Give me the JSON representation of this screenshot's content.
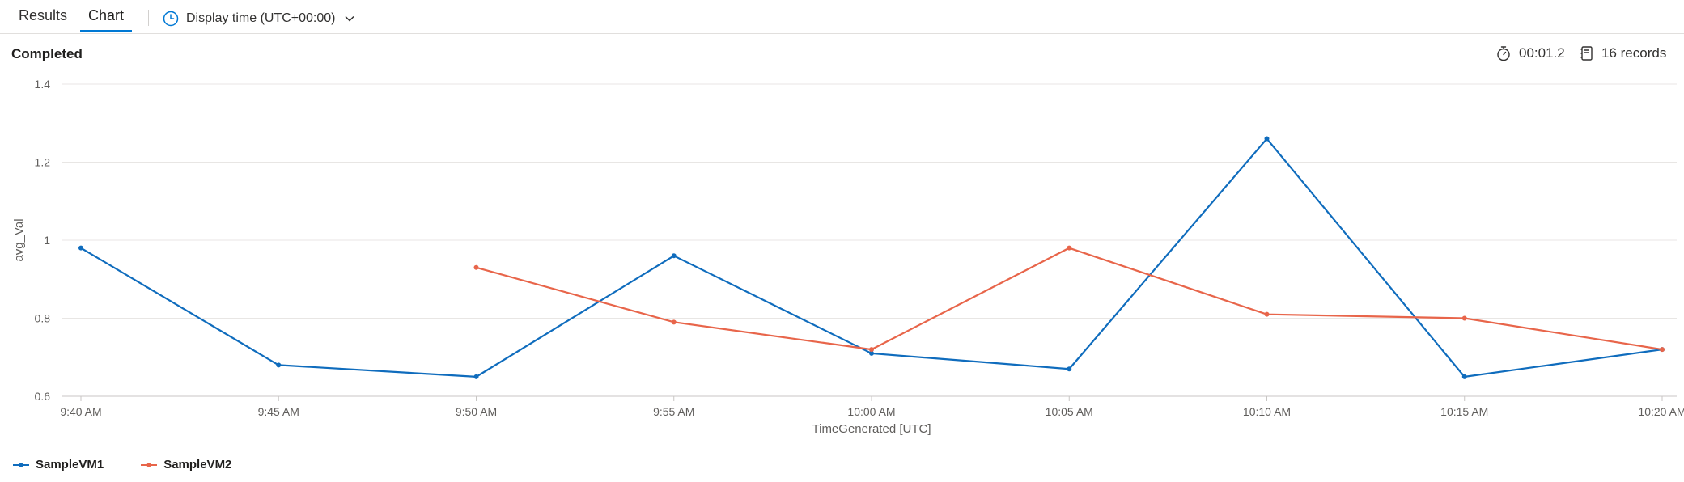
{
  "tabs": [
    {
      "label": "Results",
      "active": false
    },
    {
      "label": "Chart",
      "active": true
    }
  ],
  "display_time": {
    "label": "Display time (UTC+00:00)",
    "icon": "clock-icon"
  },
  "status": {
    "text": "Completed",
    "duration": "00:01.2",
    "records": "16 records"
  },
  "colors": {
    "accent": "#0078d4",
    "series1": "#0f6cbd",
    "series2": "#e8654a"
  },
  "chart_data": {
    "type": "line",
    "xlabel": "TimeGenerated [UTC]",
    "ylabel": "avg_Val",
    "ylim": [
      0.6,
      1.4
    ],
    "yticks": [
      0.6,
      0.8,
      1,
      1.2,
      1.4
    ],
    "ytick_labels": [
      "0.6",
      "0.8",
      "1",
      "1.2",
      "1.4"
    ],
    "x_ticks": [
      "9:40 AM",
      "9:45 AM",
      "9:50 AM",
      "9:55 AM",
      "10:00 AM",
      "10:05 AM",
      "10:10 AM",
      "10:15 AM",
      "10:20 AM"
    ],
    "grid": true,
    "legend_position": "bottom-left",
    "series": [
      {
        "name": "SampleVM1",
        "color": "#0f6cbd",
        "x": [
          "9:40 AM",
          "9:45 AM",
          "9:50 AM",
          "9:55 AM",
          "10:00 AM",
          "10:05 AM",
          "10:10 AM",
          "10:15 AM",
          "10:20 AM"
        ],
        "values": [
          0.98,
          0.68,
          0.65,
          0.96,
          0.71,
          0.67,
          1.26,
          0.65,
          0.72
        ]
      },
      {
        "name": "SampleVM2",
        "color": "#e8654a",
        "x": [
          "9:50 AM",
          "9:55 AM",
          "10:00 AM",
          "10:05 AM",
          "10:10 AM",
          "10:15 AM",
          "10:20 AM"
        ],
        "values": [
          0.93,
          0.79,
          0.72,
          0.98,
          0.81,
          0.8,
          0.72
        ]
      }
    ]
  }
}
